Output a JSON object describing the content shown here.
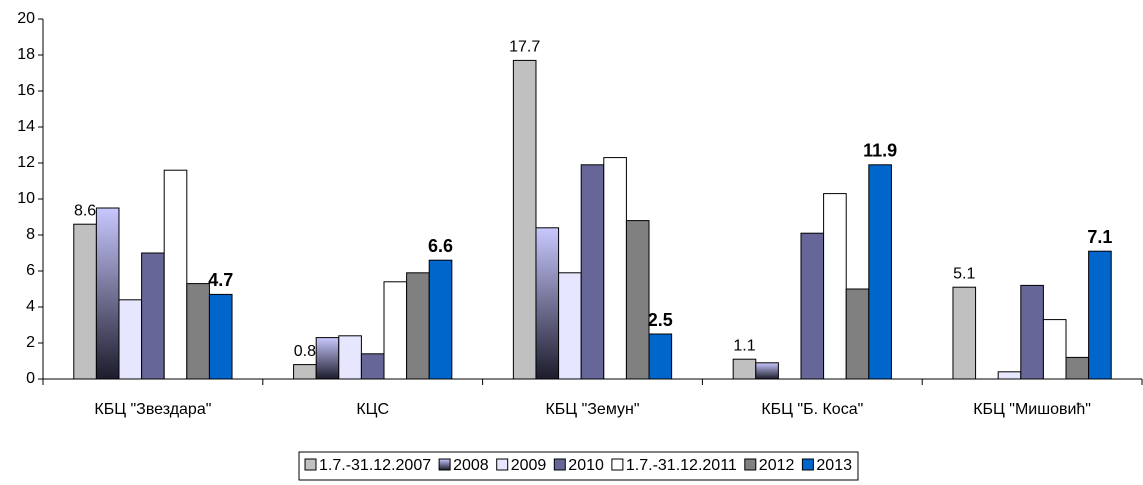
{
  "chart_data": {
    "type": "bar",
    "categories": [
      "КБЦ \"Звездара\"",
      "КЦС",
      "КБЦ \"Земун\"",
      "КБЦ \"Б. Коса\"",
      "КБЦ \"Мишовић\""
    ],
    "series": [
      {
        "name": "1.7.-31.12.2007",
        "color": "#c0c0c0",
        "values": [
          8.6,
          0.8,
          17.7,
          1.1,
          5.1
        ],
        "labels": "normal"
      },
      {
        "name": "2008",
        "color": "#c8c8ff",
        "gradient_to": "#1c1c2c",
        "values": [
          9.5,
          2.3,
          8.4,
          0.9,
          null
        ]
      },
      {
        "name": "2009",
        "color": "#e6e6ff",
        "values": [
          4.4,
          2.4,
          5.9,
          null,
          0.4
        ]
      },
      {
        "name": "2010",
        "color": "#666699",
        "values": [
          7.0,
          1.4,
          11.9,
          8.1,
          5.2
        ]
      },
      {
        "name": "1.7.-31.12.2011",
        "color": "#ffffff",
        "values": [
          11.6,
          5.4,
          12.3,
          10.3,
          3.3
        ]
      },
      {
        "name": "2012",
        "color": "#808080",
        "values": [
          5.3,
          5.9,
          8.8,
          5.0,
          1.2
        ]
      },
      {
        "name": "2013",
        "color": "#0066cc",
        "values": [
          4.7,
          6.6,
          2.5,
          11.9,
          7.1
        ],
        "labels": "bold"
      }
    ],
    "ylim": [
      0,
      20
    ],
    "yticks": [
      0,
      2,
      4,
      6,
      8,
      10,
      12,
      14,
      16,
      18,
      20
    ],
    "grid": false
  }
}
